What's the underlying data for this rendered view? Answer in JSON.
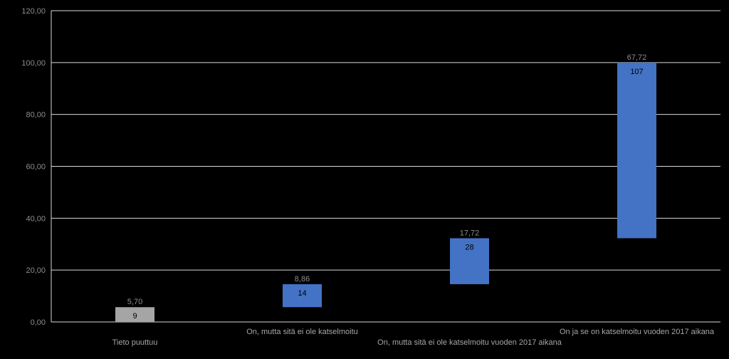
{
  "chart_data": {
    "type": "bar",
    "subtype": "waterfall",
    "categories": [
      "Tieto puuttuu",
      "On, mutta sitä ei ole katselmoitu",
      "On, mutta sitä ei ole katselmoitu vuoden 2017 aikana",
      "On ja se on katselmoitu vuoden 2017 aikana"
    ],
    "series": [
      {
        "base": [
          0,
          5.7,
          14.56,
          32.28
        ],
        "values": [
          5.7,
          8.86,
          17.72,
          67.72
        ],
        "value_labels": [
          "5,70",
          "8,86",
          "17,72",
          "67,72"
        ],
        "count_labels": [
          "9",
          "14",
          "28",
          "107"
        ],
        "colors": [
          "#a5a5a5",
          "#4472c4",
          "#4472c4",
          "#4472c4"
        ]
      }
    ],
    "y_ticks": [
      "0,00",
      "20,00",
      "40,00",
      "60,00",
      "80,00",
      "100,00",
      "120,00"
    ],
    "ylim": [
      0,
      120
    ],
    "grid": true,
    "background": "#000000",
    "gridline_color": "#d9d9d9"
  }
}
